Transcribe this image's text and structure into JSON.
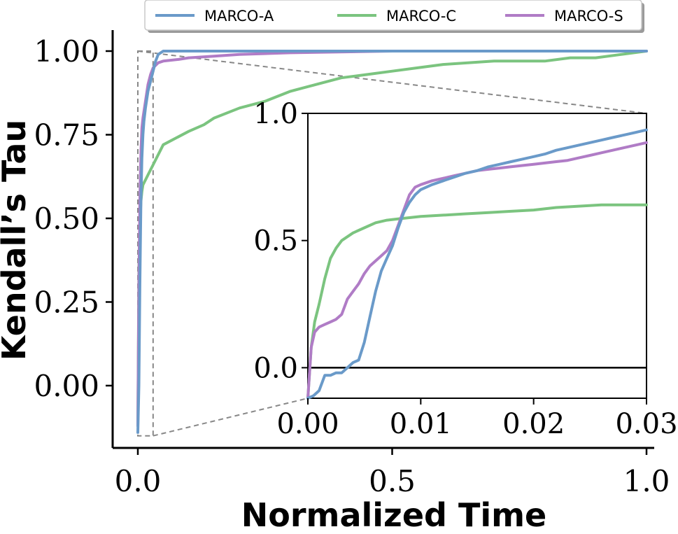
{
  "chart_data": [
    {
      "type": "line",
      "role": "main",
      "xlabel": "Normalized Time",
      "ylabel": "Kendall’s Tau",
      "xlim": [
        -0.05,
        1.02
      ],
      "ylim": [
        -0.18,
        1.06
      ],
      "xticks": [
        0.0,
        0.5,
        1.0
      ],
      "xtick_labels": [
        "0.0",
        "0.5",
        "1.0"
      ],
      "yticks": [
        0.0,
        0.25,
        0.5,
        0.75,
        1.0
      ],
      "ytick_labels": [
        "0.00",
        "0.25",
        "0.50",
        "0.75",
        "1.00"
      ],
      "legend": {
        "placement": "top",
        "entries": [
          "MARCO-A",
          "MARCO-C",
          "MARCO-S"
        ]
      },
      "series": [
        {
          "name": "MARCO-A",
          "color": "#6a9ac9",
          "x": [
            0.0,
            0.002,
            0.004,
            0.006,
            0.008,
            0.01,
            0.012,
            0.015,
            0.02,
            0.025,
            0.03,
            0.035,
            0.04,
            0.05,
            0.06,
            0.08,
            0.1,
            0.2,
            0.5,
            1.0
          ],
          "y": [
            -0.14,
            0.0,
            0.3,
            0.55,
            0.68,
            0.75,
            0.79,
            0.83,
            0.88,
            0.91,
            0.94,
            0.97,
            0.99,
            1.0,
            1.0,
            1.0,
            1.0,
            1.0,
            1.0,
            1.0
          ]
        },
        {
          "name": "MARCO-C",
          "color": "#7bc47f",
          "x": [
            0.0,
            0.002,
            0.004,
            0.006,
            0.008,
            0.01,
            0.02,
            0.03,
            0.05,
            0.1,
            0.13,
            0.15,
            0.2,
            0.25,
            0.3,
            0.35,
            0.4,
            0.45,
            0.5,
            0.55,
            0.6,
            0.7,
            0.8,
            0.85,
            0.9,
            0.95,
            1.0
          ],
          "y": [
            -0.12,
            0.35,
            0.48,
            0.55,
            0.58,
            0.6,
            0.63,
            0.66,
            0.72,
            0.76,
            0.78,
            0.8,
            0.83,
            0.85,
            0.88,
            0.9,
            0.92,
            0.93,
            0.94,
            0.95,
            0.96,
            0.97,
            0.97,
            0.98,
            0.98,
            0.99,
            1.0
          ]
        },
        {
          "name": "MARCO-S",
          "color": "#b07cc6",
          "x": [
            0.0,
            0.002,
            0.004,
            0.006,
            0.008,
            0.01,
            0.015,
            0.02,
            0.025,
            0.03,
            0.04,
            0.05,
            0.08,
            0.1,
            0.15,
            0.2,
            0.3,
            0.5,
            0.7,
            1.0
          ],
          "y": [
            -0.12,
            0.3,
            0.55,
            0.7,
            0.77,
            0.8,
            0.85,
            0.9,
            0.93,
            0.95,
            0.965,
            0.97,
            0.975,
            0.98,
            0.985,
            0.99,
            0.995,
            1.0,
            1.0,
            1.0
          ]
        }
      ]
    },
    {
      "type": "line",
      "role": "inset",
      "xlim": [
        0.0,
        0.03
      ],
      "ylim": [
        -0.12,
        1.0
      ],
      "xticks": [
        0.0,
        0.01,
        0.02,
        0.03
      ],
      "xtick_labels": [
        "0.00",
        "0.01",
        "0.02",
        "0.03"
      ],
      "yticks": [
        0.0,
        0.5,
        1.0
      ],
      "ytick_labels": [
        "0.0",
        "0.5",
        "1.0"
      ],
      "reference_line_y": 0.0,
      "zoom_box": {
        "x": [
          0.0,
          0.03
        ],
        "y": [
          -0.15,
          1.0
        ]
      },
      "series": [
        {
          "name": "MARCO-A",
          "color": "#6a9ac9",
          "x": [
            0.0,
            0.0005,
            0.001,
            0.0015,
            0.002,
            0.0025,
            0.003,
            0.0035,
            0.004,
            0.0045,
            0.005,
            0.0055,
            0.006,
            0.0065,
            0.007,
            0.0075,
            0.008,
            0.0085,
            0.009,
            0.0095,
            0.01,
            0.011,
            0.012,
            0.013,
            0.014,
            0.015,
            0.016,
            0.017,
            0.018,
            0.019,
            0.02,
            0.021,
            0.022,
            0.023,
            0.024,
            0.025,
            0.026,
            0.027,
            0.028,
            0.029,
            0.03
          ],
          "y": [
            -0.12,
            -0.11,
            -0.09,
            -0.03,
            -0.03,
            -0.02,
            -0.02,
            0.0,
            0.02,
            0.03,
            0.1,
            0.2,
            0.3,
            0.38,
            0.43,
            0.48,
            0.55,
            0.61,
            0.65,
            0.68,
            0.7,
            0.72,
            0.735,
            0.75,
            0.765,
            0.775,
            0.79,
            0.8,
            0.81,
            0.82,
            0.83,
            0.84,
            0.855,
            0.865,
            0.875,
            0.885,
            0.895,
            0.905,
            0.915,
            0.925,
            0.935
          ]
        },
        {
          "name": "MARCO-C",
          "color": "#7bc47f",
          "x": [
            0.0,
            0.0003,
            0.0006,
            0.001,
            0.0015,
            0.002,
            0.0025,
            0.003,
            0.004,
            0.005,
            0.006,
            0.007,
            0.008,
            0.009,
            0.01,
            0.012,
            0.014,
            0.016,
            0.018,
            0.02,
            0.022,
            0.024,
            0.026,
            0.028,
            0.03
          ],
          "y": [
            -0.12,
            0.08,
            0.18,
            0.25,
            0.35,
            0.43,
            0.47,
            0.5,
            0.53,
            0.55,
            0.57,
            0.58,
            0.585,
            0.59,
            0.595,
            0.6,
            0.605,
            0.61,
            0.615,
            0.62,
            0.63,
            0.635,
            0.64,
            0.64,
            0.64
          ]
        },
        {
          "name": "MARCO-S",
          "color": "#b07cc6",
          "x": [
            0.0,
            0.0003,
            0.0006,
            0.001,
            0.0015,
            0.002,
            0.0025,
            0.003,
            0.0035,
            0.004,
            0.0045,
            0.005,
            0.0055,
            0.006,
            0.0065,
            0.007,
            0.0075,
            0.008,
            0.0085,
            0.009,
            0.0095,
            0.01,
            0.011,
            0.012,
            0.013,
            0.014,
            0.015,
            0.016,
            0.017,
            0.018,
            0.019,
            0.02,
            0.021,
            0.022,
            0.023,
            0.024,
            0.025,
            0.026,
            0.027,
            0.028,
            0.029,
            0.03
          ],
          "y": [
            -0.12,
            0.08,
            0.14,
            0.16,
            0.17,
            0.18,
            0.19,
            0.21,
            0.27,
            0.3,
            0.33,
            0.37,
            0.4,
            0.42,
            0.44,
            0.46,
            0.5,
            0.56,
            0.62,
            0.68,
            0.71,
            0.72,
            0.735,
            0.745,
            0.755,
            0.765,
            0.775,
            0.78,
            0.785,
            0.79,
            0.795,
            0.8,
            0.805,
            0.81,
            0.815,
            0.825,
            0.835,
            0.845,
            0.855,
            0.865,
            0.875,
            0.885
          ]
        }
      ]
    }
  ]
}
